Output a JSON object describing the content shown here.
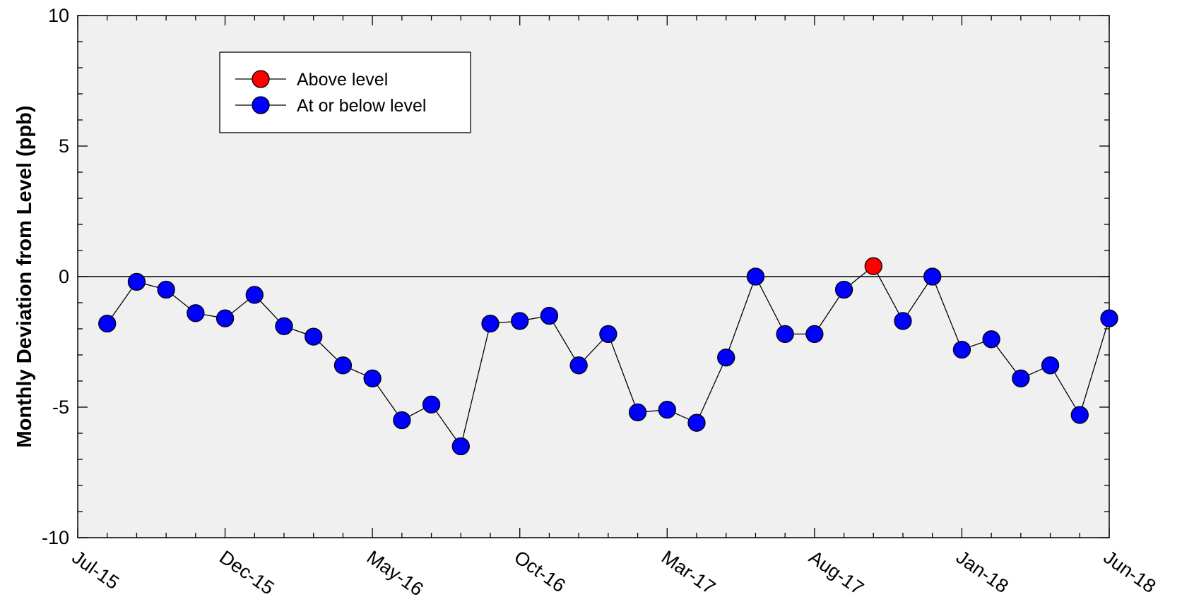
{
  "chart_data": {
    "type": "line",
    "title": "",
    "xlabel": "",
    "ylabel": "Monthly Deviation from Level (ppb)",
    "ylim": [
      -10,
      10
    ],
    "y_ticks": [
      "10",
      "5",
      "0",
      "-5",
      "-10"
    ],
    "x_range": [
      "2015-07",
      "2018-06"
    ],
    "x_ticks": [
      {
        "label": "Jul-15",
        "x": "2015-07"
      },
      {
        "label": "Dec-15",
        "x": "2015-12"
      },
      {
        "label": "May-16",
        "x": "2016-05"
      },
      {
        "label": "Oct-16",
        "x": "2016-10"
      },
      {
        "label": "Mar-17",
        "x": "2017-03"
      },
      {
        "label": "Aug-17",
        "x": "2017-08"
      },
      {
        "label": "Jan-18",
        "x": "2018-01"
      },
      {
        "label": "Jun-18",
        "x": "2018-06"
      }
    ],
    "reference_line": 0,
    "grid": false,
    "legend_position": "top-left",
    "colors": {
      "above": "#ff0000",
      "below": "#0000ff",
      "line": "#000000",
      "plot_bg": "#f0f0f0"
    },
    "series": [
      {
        "name": "Above level",
        "color": "#ff0000",
        "points": [
          {
            "x": "2017-10",
            "y": 0.4
          }
        ]
      },
      {
        "name": "At or below level",
        "color": "#0000ff",
        "points": [
          {
            "x": "2015-08",
            "y": -1.8
          },
          {
            "x": "2015-09",
            "y": -0.2
          },
          {
            "x": "2015-10",
            "y": -0.5
          },
          {
            "x": "2015-11",
            "y": -1.4
          },
          {
            "x": "2015-12",
            "y": -1.6
          },
          {
            "x": "2016-01",
            "y": -0.7
          },
          {
            "x": "2016-02",
            "y": -1.9
          },
          {
            "x": "2016-03",
            "y": -2.3
          },
          {
            "x": "2016-04",
            "y": -3.4
          },
          {
            "x": "2016-05",
            "y": -3.9
          },
          {
            "x": "2016-06",
            "y": -5.5
          },
          {
            "x": "2016-07",
            "y": -4.9
          },
          {
            "x": "2016-08",
            "y": -6.5
          },
          {
            "x": "2016-09",
            "y": -1.8
          },
          {
            "x": "2016-10",
            "y": -1.7
          },
          {
            "x": "2016-11",
            "y": -1.5
          },
          {
            "x": "2016-12",
            "y": -3.4
          },
          {
            "x": "2017-01",
            "y": -2.2
          },
          {
            "x": "2017-02",
            "y": -5.2
          },
          {
            "x": "2017-03",
            "y": -5.1
          },
          {
            "x": "2017-04",
            "y": -5.6
          },
          {
            "x": "2017-05",
            "y": -3.1
          },
          {
            "x": "2017-06",
            "y": 0.0
          },
          {
            "x": "2017-07",
            "y": -2.2
          },
          {
            "x": "2017-08",
            "y": -2.2
          },
          {
            "x": "2017-09",
            "y": -0.5
          },
          {
            "x": "2017-11",
            "y": -1.7
          },
          {
            "x": "2017-12",
            "y": 0.0
          },
          {
            "x": "2018-01",
            "y": -2.8
          },
          {
            "x": "2018-02",
            "y": -2.4
          },
          {
            "x": "2018-03",
            "y": -3.9
          },
          {
            "x": "2018-04",
            "y": -3.4
          },
          {
            "x": "2018-05",
            "y": -5.3
          },
          {
            "x": "2018-06",
            "y": -1.6
          }
        ]
      }
    ]
  }
}
